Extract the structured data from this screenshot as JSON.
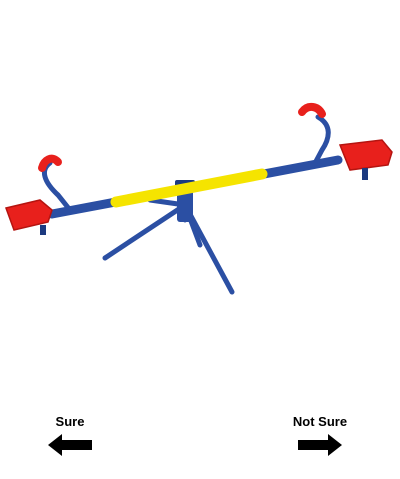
{
  "stimulus": {
    "icon": "seesaw-image",
    "colors": {
      "frame": "#2b4fa3",
      "frame_dark": "#1c3a80",
      "seat": "#e8201c",
      "seat_dark": "#b51410",
      "center_grip": "#f5e400"
    }
  },
  "choices": {
    "left": {
      "label": "Sure",
      "icon": "arrow-left-icon"
    },
    "right": {
      "label": "Not Sure",
      "icon": "arrow-right-icon"
    }
  }
}
